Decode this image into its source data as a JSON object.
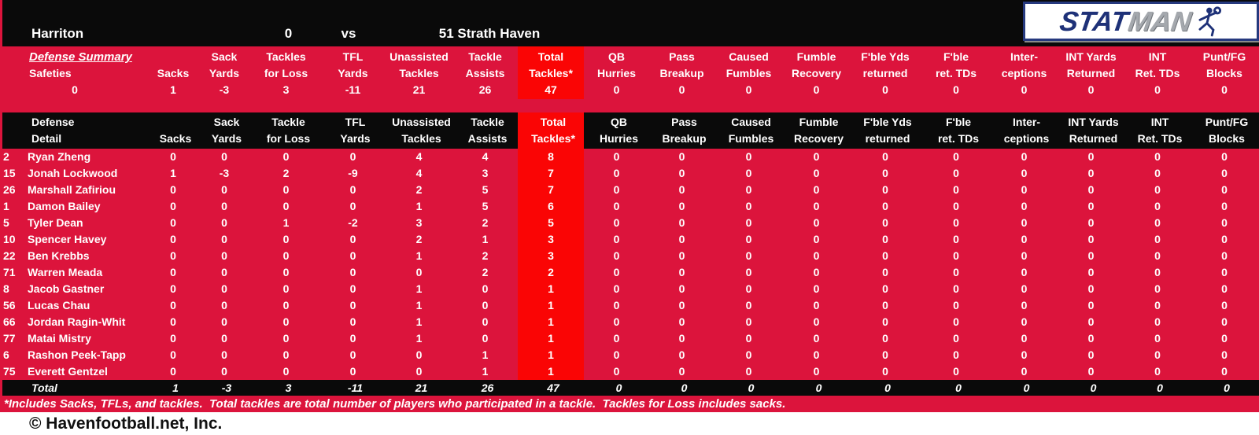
{
  "colors": {
    "crimson": "#DC143C",
    "bright_red": "#FA0505",
    "band_black": "#0A0A0A",
    "logo_navy": "#1E3178",
    "logo_silver": "#A4A8AD"
  },
  "scoreboard": {
    "home_team": "Harriton",
    "home_score": "0",
    "versus": "vs",
    "away": "51 Strath Haven"
  },
  "logo": {
    "stat": "STAT",
    "man": "MAN"
  },
  "summary": {
    "title": "Defense Summary",
    "label": "Safeties",
    "label_value": "0",
    "headers": [
      [
        "",
        "Sacks"
      ],
      [
        "Sack",
        "Yards"
      ],
      [
        "Tackles",
        "for Loss"
      ],
      [
        "TFL",
        "Yards"
      ],
      [
        "Unassisted",
        "Tackles"
      ],
      [
        "Tackle",
        "Assists"
      ],
      [
        "Total",
        "Tackles*"
      ],
      [
        "QB",
        "Hurries"
      ],
      [
        "Pass",
        "Breakup"
      ],
      [
        "Caused",
        "Fumbles"
      ],
      [
        "Fumble",
        "Recovery"
      ],
      [
        "F'ble Yds",
        "returned"
      ],
      [
        "F'ble",
        "ret. TDs"
      ],
      [
        "Inter-",
        "ceptions"
      ],
      [
        "INT Yards",
        "Returned"
      ],
      [
        "INT",
        "Ret. TDs"
      ],
      [
        "Punt/FG",
        "Blocks"
      ]
    ],
    "values": [
      "1",
      "-3",
      "3",
      "-11",
      "21",
      "26",
      "47",
      "0",
      "0",
      "0",
      "0",
      "0",
      "0",
      "0",
      "0",
      "0",
      "0"
    ]
  },
  "detail": {
    "title": [
      "Defense",
      "Detail"
    ],
    "headers": [
      [
        "",
        "Sacks"
      ],
      [
        "Sack",
        "Yards"
      ],
      [
        "Tackle",
        "for Loss"
      ],
      [
        "TFL",
        "Yards"
      ],
      [
        "Unassisted",
        "Tackles"
      ],
      [
        "Tackle",
        "Assists"
      ],
      [
        "Total",
        "Tackles*"
      ],
      [
        "QB",
        "Hurries"
      ],
      [
        "Pass",
        "Breakup"
      ],
      [
        "Caused",
        "Fumbles"
      ],
      [
        "Fumble",
        "Recovery"
      ],
      [
        "F'ble Yds",
        "returned"
      ],
      [
        "F'ble",
        "ret. TDs"
      ],
      [
        "Inter-",
        "ceptions"
      ],
      [
        "INT Yards",
        "Returned"
      ],
      [
        "INT",
        "Ret. TDs"
      ],
      [
        "Punt/FG",
        "Blocks"
      ]
    ],
    "players": [
      {
        "num": "2",
        "name": "Ryan Zheng",
        "stats": [
          "0",
          "0",
          "0",
          "0",
          "4",
          "4",
          "8",
          "0",
          "0",
          "0",
          "0",
          "0",
          "0",
          "0",
          "0",
          "0",
          "0"
        ]
      },
      {
        "num": "15",
        "name": "Jonah Lockwood",
        "stats": [
          "1",
          "-3",
          "2",
          "-9",
          "4",
          "3",
          "7",
          "0",
          "0",
          "0",
          "0",
          "0",
          "0",
          "0",
          "0",
          "0",
          "0"
        ]
      },
      {
        "num": "26",
        "name": "Marshall Zafiriou",
        "stats": [
          "0",
          "0",
          "0",
          "0",
          "2",
          "5",
          "7",
          "0",
          "0",
          "0",
          "0",
          "0",
          "0",
          "0",
          "0",
          "0",
          "0"
        ]
      },
      {
        "num": "1",
        "name": "Damon Bailey",
        "stats": [
          "0",
          "0",
          "0",
          "0",
          "1",
          "5",
          "6",
          "0",
          "0",
          "0",
          "0",
          "0",
          "0",
          "0",
          "0",
          "0",
          "0"
        ]
      },
      {
        "num": "5",
        "name": "Tyler Dean",
        "stats": [
          "0",
          "0",
          "1",
          "-2",
          "3",
          "2",
          "5",
          "0",
          "0",
          "0",
          "0",
          "0",
          "0",
          "0",
          "0",
          "0",
          "0"
        ]
      },
      {
        "num": "10",
        "name": "Spencer Havey",
        "stats": [
          "0",
          "0",
          "0",
          "0",
          "2",
          "1",
          "3",
          "0",
          "0",
          "0",
          "0",
          "0",
          "0",
          "0",
          "0",
          "0",
          "0"
        ]
      },
      {
        "num": "22",
        "name": "Ben Krebbs",
        "stats": [
          "0",
          "0",
          "0",
          "0",
          "1",
          "2",
          "3",
          "0",
          "0",
          "0",
          "0",
          "0",
          "0",
          "0",
          "0",
          "0",
          "0"
        ]
      },
      {
        "num": "71",
        "name": "Warren Meada",
        "stats": [
          "0",
          "0",
          "0",
          "0",
          "0",
          "2",
          "2",
          "0",
          "0",
          "0",
          "0",
          "0",
          "0",
          "0",
          "0",
          "0",
          "0"
        ]
      },
      {
        "num": "8",
        "name": "Jacob Gastner",
        "stats": [
          "0",
          "0",
          "0",
          "0",
          "1",
          "0",
          "1",
          "0",
          "0",
          "0",
          "0",
          "0",
          "0",
          "0",
          "0",
          "0",
          "0"
        ]
      },
      {
        "num": "56",
        "name": "Lucas Chau",
        "stats": [
          "0",
          "0",
          "0",
          "0",
          "1",
          "0",
          "1",
          "0",
          "0",
          "0",
          "0",
          "0",
          "0",
          "0",
          "0",
          "0",
          "0"
        ]
      },
      {
        "num": "66",
        "name": "Jordan Ragin-Whit",
        "stats": [
          "0",
          "0",
          "0",
          "0",
          "1",
          "0",
          "1",
          "0",
          "0",
          "0",
          "0",
          "0",
          "0",
          "0",
          "0",
          "0",
          "0"
        ]
      },
      {
        "num": "77",
        "name": "Matai Mistry",
        "stats": [
          "0",
          "0",
          "0",
          "0",
          "1",
          "0",
          "1",
          "0",
          "0",
          "0",
          "0",
          "0",
          "0",
          "0",
          "0",
          "0",
          "0"
        ]
      },
      {
        "num": "6",
        "name": "Rashon Peek-Tapp",
        "stats": [
          "0",
          "0",
          "0",
          "0",
          "0",
          "1",
          "1",
          "0",
          "0",
          "0",
          "0",
          "0",
          "0",
          "0",
          "0",
          "0",
          "0"
        ]
      },
      {
        "num": "75",
        "name": "Everett Gentzel",
        "stats": [
          "0",
          "0",
          "0",
          "0",
          "0",
          "1",
          "1",
          "0",
          "0",
          "0",
          "0",
          "0",
          "0",
          "0",
          "0",
          "0",
          "0"
        ]
      }
    ],
    "total_label": "Total",
    "total": [
      "1",
      "-3",
      "3",
      "-11",
      "21",
      "26",
      "47",
      "0",
      "0",
      "0",
      "0",
      "0",
      "0",
      "0",
      "0",
      "0",
      "0"
    ]
  },
  "footnote": "*Includes Sacks, TFLs, and tackles.  Total tackles are total number of players who participated in a tackle.  Tackles for Loss includes sacks.",
  "footer": "© Havenfootball.net, Inc."
}
